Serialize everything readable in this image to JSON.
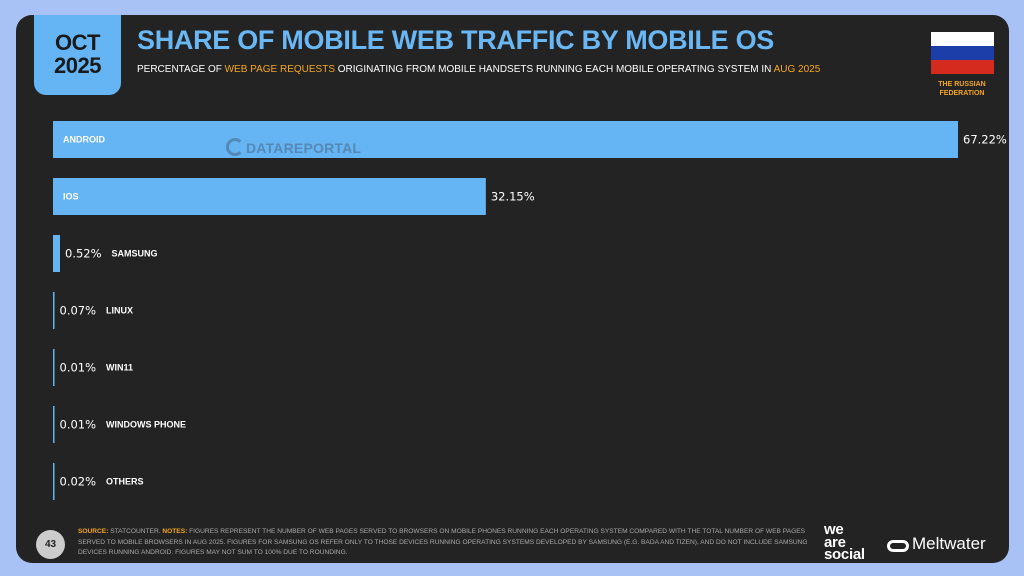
{
  "header": {
    "month": "OCT",
    "year": "2025",
    "title": "SHARE OF MOBILE WEB TRAFFIC BY MOBILE OS",
    "subtitle_pre": "PERCENTAGE OF ",
    "subtitle_hl1": "WEB PAGE REQUESTS",
    "subtitle_mid": " ORIGINATING FROM MOBILE HANDSETS RUNNING EACH MOBILE OPERATING SYSTEM IN ",
    "subtitle_hl2": "AUG 2025",
    "country_line1": "THE RUSSIAN",
    "country_line2": "FEDERATION"
  },
  "watermark": "DATAREPORTAL",
  "chart_data": {
    "type": "bar",
    "orientation": "horizontal",
    "categories": [
      "ANDROID",
      "IOS",
      "SAMSUNG",
      "LINUX",
      "WIN11",
      "WINDOWS PHONE",
      "OTHERS"
    ],
    "values": [
      67.22,
      32.15,
      0.52,
      0.07,
      0.01,
      0.01,
      0.02
    ],
    "value_labels": [
      "67.22%",
      "32.15%",
      "0.52%",
      "0.07%",
      "0.01%",
      "0.01%",
      "0.02%"
    ],
    "xlim": [
      0,
      67.22
    ],
    "bar_color": "#65b5f5",
    "grid": false,
    "legend": false
  },
  "footer": {
    "page_number": "43",
    "source_label": "SOURCE:",
    "source_text": " STATCOUNTER. ",
    "notes_label": "NOTES:",
    "notes_text": " FIGURES REPRESENT THE NUMBER OF WEB PAGES SERVED TO BROWSERS ON MOBILE PHONES RUNNING EACH OPERATING SYSTEM COMPARED WITH THE TOTAL NUMBER OF WEB PAGES SERVED TO MOBILE BROWSERS IN AUG 2025. FIGURES FOR SAMSUNG OS REFER ONLY TO THOSE DEVICES RUNNING OPERATING SYSTEMS DEVELOPED BY SAMSUNG (E.G. BADA AND TIZEN), AND DO NOT INCLUDE SAMSUNG DEVICES RUNNING ANDROID. FIGURES MAY NOT SUM TO 100% DUE TO ROUNDING.",
    "brand1_line1": "we",
    "brand1_line2": "are",
    "brand1_line3": "social",
    "brand2": "Meltwater"
  },
  "colors": {
    "background": "#232323",
    "accent": "#65b5f5",
    "highlight": "#f5a623"
  }
}
